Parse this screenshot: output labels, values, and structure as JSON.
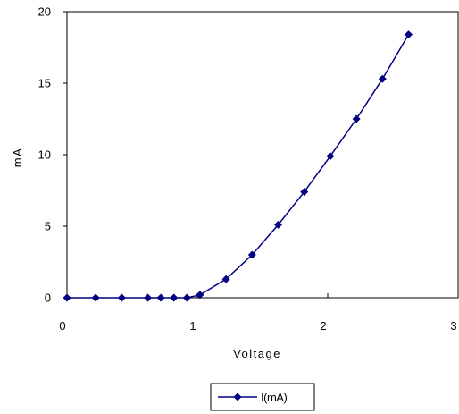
{
  "chart_data": {
    "type": "line",
    "title": "",
    "xlabel": "Voltage",
    "ylabel": "mA",
    "xlim": [
      0,
      3
    ],
    "ylim": [
      0,
      20
    ],
    "x_ticks": [
      0,
      1,
      2,
      3
    ],
    "y_ticks": [
      0,
      5,
      10,
      15,
      20
    ],
    "x_tick_labels": [
      "0",
      "1",
      "2",
      "3"
    ],
    "y_tick_labels": [
      "0",
      "5",
      "10",
      "15",
      "20"
    ],
    "grid": false,
    "legend_position": "bottom-center",
    "series": [
      {
        "name": "I(mA)",
        "color": "#000080",
        "marker": "diamond",
        "x": [
          0.0,
          0.22,
          0.42,
          0.62,
          0.72,
          0.82,
          0.92,
          1.02,
          1.22,
          1.42,
          1.62,
          1.82,
          2.02,
          2.22,
          2.42,
          2.62
        ],
        "y": [
          0.0,
          0.0,
          0.0,
          0.0,
          0.0,
          0.0,
          0.0,
          0.2,
          1.3,
          3.0,
          5.1,
          7.4,
          9.9,
          12.5,
          15.3,
          18.4
        ]
      }
    ]
  }
}
